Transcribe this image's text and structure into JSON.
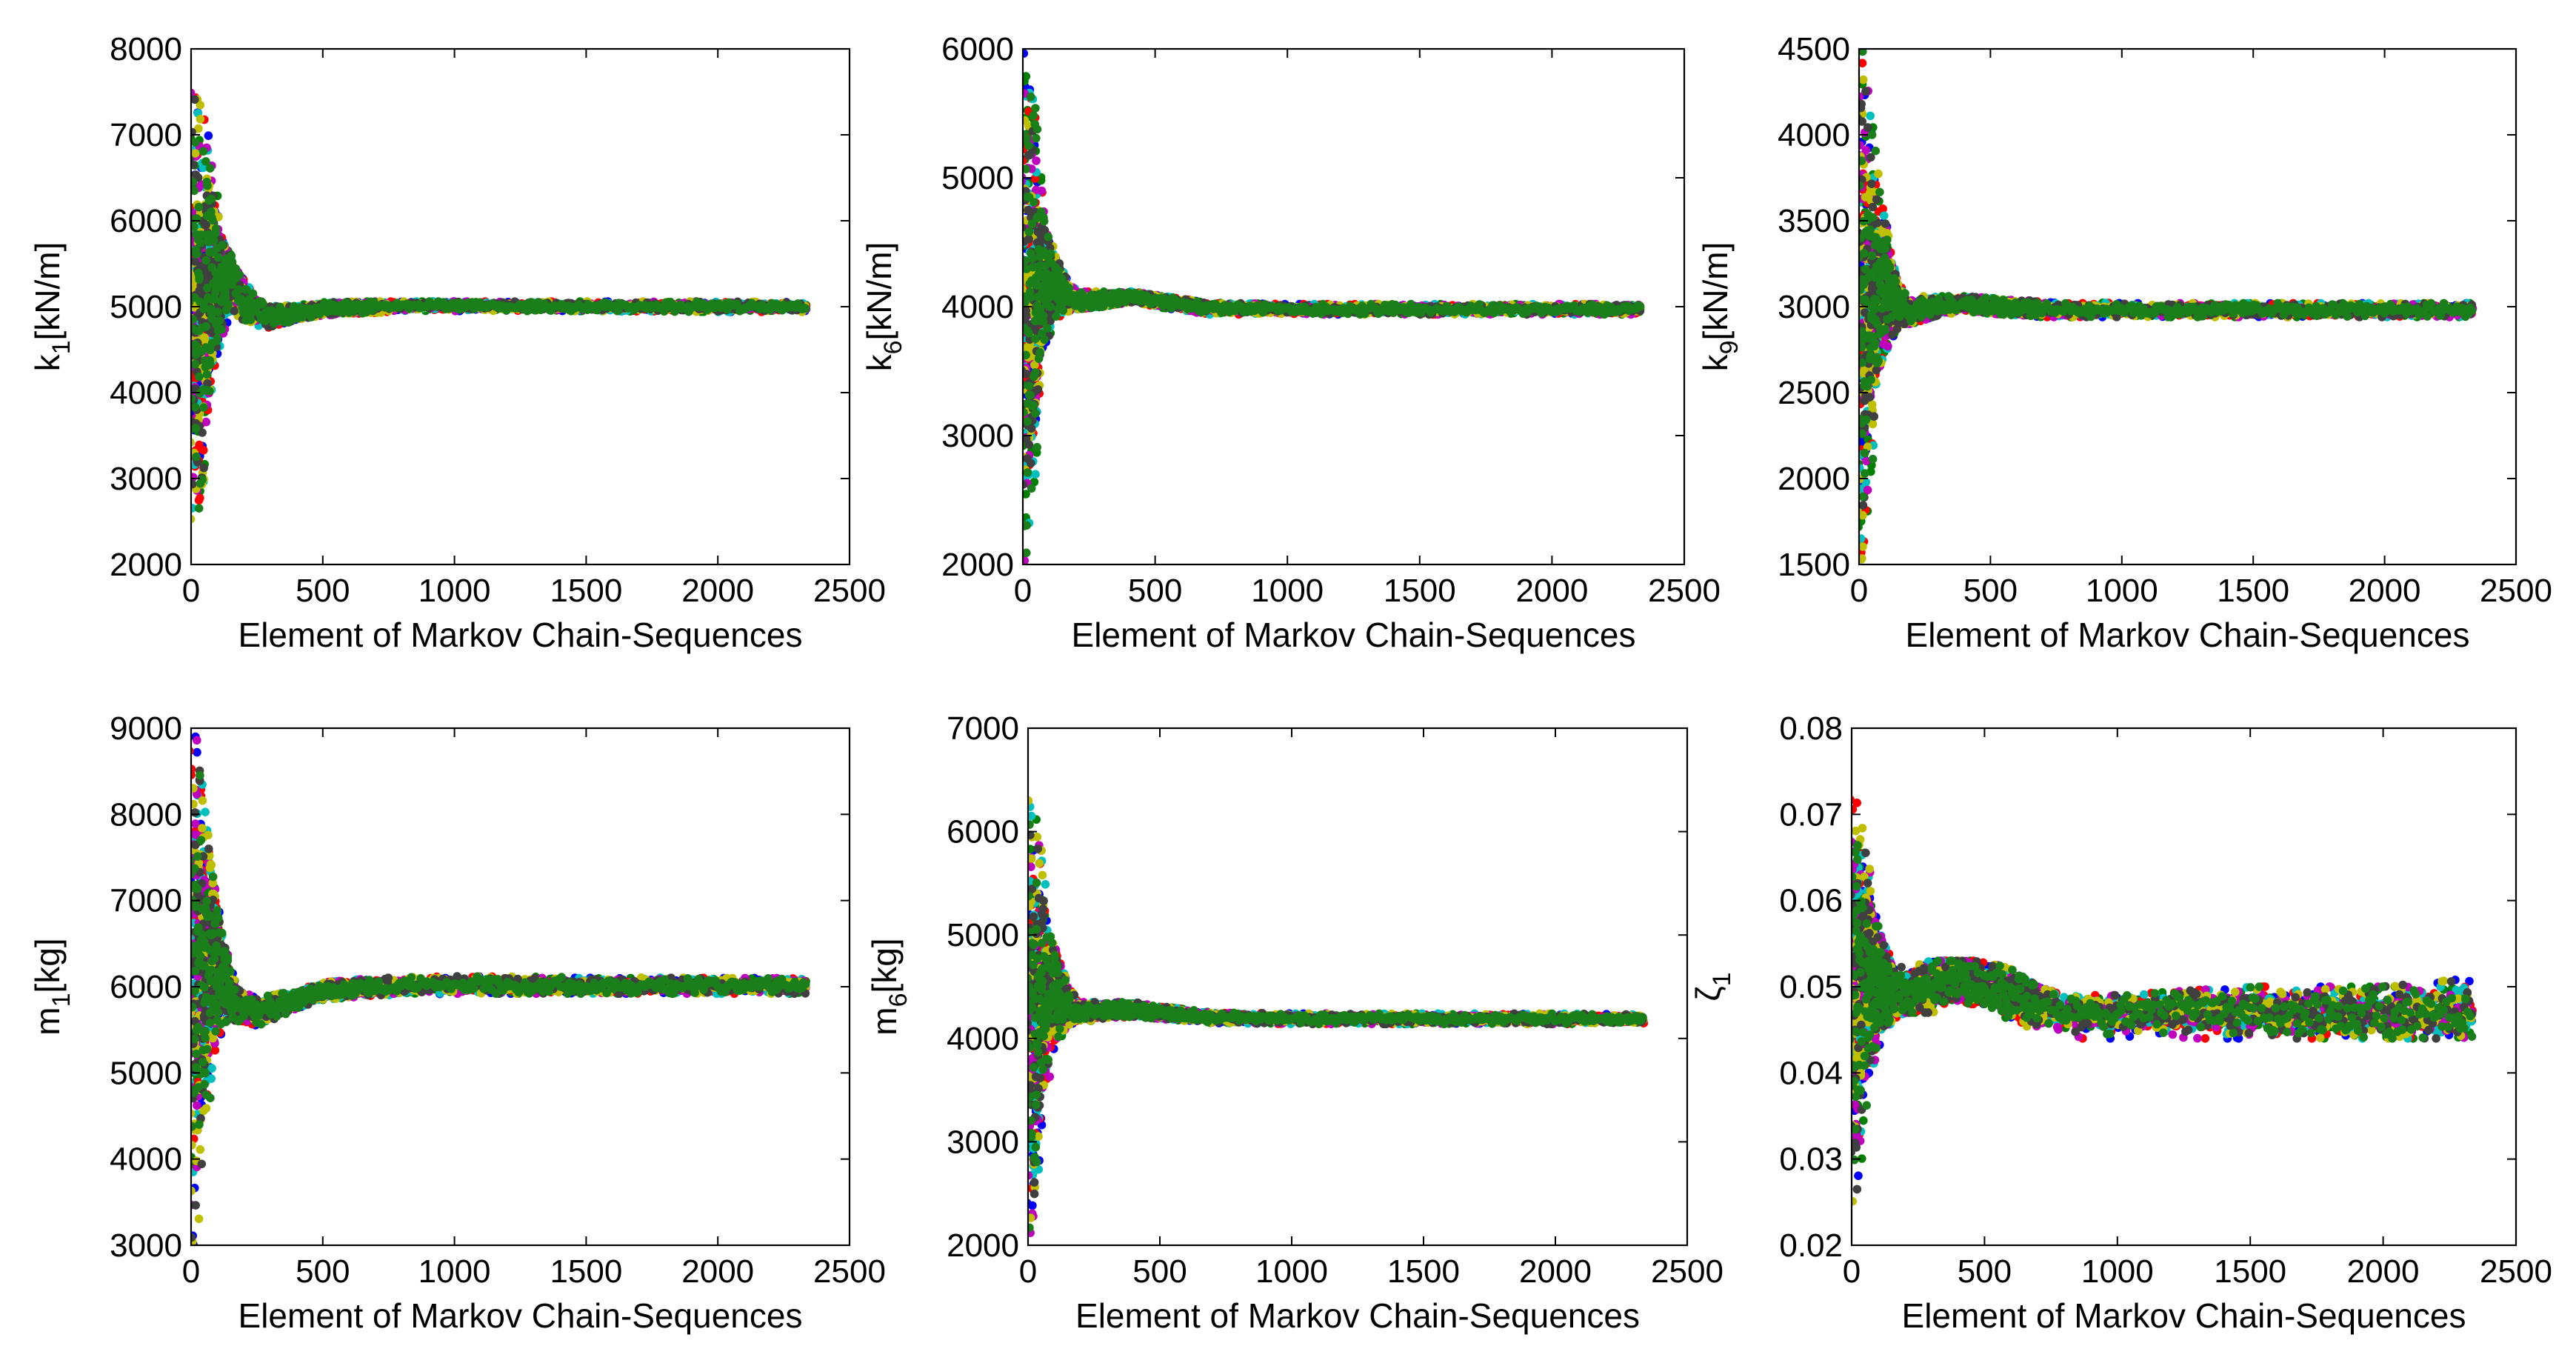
{
  "figure": {
    "marker_colors": [
      "#0000ff",
      "#008000",
      "#ff0000",
      "#00bfbf",
      "#bf00bf",
      "#bfbf00",
      "#404040",
      "#1a7f1a"
    ]
  },
  "chart_data": [
    {
      "type": "scatter",
      "panel": "top-left",
      "ylabel": "k",
      "ylabel_sub": "1",
      "ylabel_unit": "[kN/m]",
      "xlabel": "Element of Markov Chain-Sequences",
      "xlim": [
        0,
        2500
      ],
      "ylim": [
        2000,
        8000
      ],
      "xticks": [
        0,
        500,
        1000,
        1500,
        2000,
        2500
      ],
      "yticks": [
        2000,
        3000,
        4000,
        5000,
        6000,
        7000,
        8000
      ],
      "xtick_labels": [
        "0",
        "500",
        "1000",
        "1500",
        "2000",
        "2500"
      ],
      "ytick_labels": [
        "2000",
        "3000",
        "4000",
        "5000",
        "6000",
        "7000",
        "8000"
      ],
      "n_elements": 2340,
      "series_count": 8,
      "trace": {
        "x": [
          0,
          20,
          50,
          80,
          120,
          150,
          200,
          250,
          300,
          400,
          500,
          700,
          1000,
          1500,
          2000,
          2340
        ],
        "mean": [
          5000,
          5000,
          5050,
          5200,
          5350,
          5300,
          5100,
          4950,
          4880,
          4920,
          4970,
          5000,
          5010,
          5000,
          5000,
          5000
        ],
        "upper": [
          7500,
          7400,
          7200,
          6500,
          5800,
          5550,
          5300,
          5100,
          5000,
          5030,
          5050,
          5060,
          5060,
          5060,
          5060,
          5050
        ],
        "lower": [
          2500,
          2600,
          3000,
          4000,
          4700,
          4800,
          4850,
          4780,
          4750,
          4850,
          4900,
          4930,
          4950,
          4950,
          4940,
          4940
        ]
      }
    },
    {
      "type": "scatter",
      "panel": "top-middle",
      "ylabel": "k",
      "ylabel_sub": "6",
      "ylabel_unit": "[kN/m]",
      "xlabel": "Element of Markov Chain-Sequences",
      "xlim": [
        0,
        2500
      ],
      "ylim": [
        2000,
        6000
      ],
      "xticks": [
        0,
        500,
        1000,
        1500,
        2000,
        2500
      ],
      "yticks": [
        2000,
        3000,
        4000,
        5000,
        6000
      ],
      "xtick_labels": [
        "0",
        "500",
        "1000",
        "1500",
        "2000",
        "2500"
      ],
      "ytick_labels": [
        "2000",
        "3000",
        "4000",
        "5000",
        "6000"
      ],
      "n_elements": 2340,
      "series_count": 8,
      "trace": {
        "x": [
          0,
          20,
          50,
          80,
          120,
          150,
          200,
          300,
          400,
          500,
          700,
          1000,
          1500,
          2000,
          2340
        ],
        "mean": [
          4000,
          4000,
          4100,
          4200,
          4150,
          4100,
          4050,
          4050,
          4080,
          4050,
          3990,
          3980,
          3980,
          3980,
          3980
        ],
        "upper": [
          6000,
          5900,
          5400,
          4700,
          4400,
          4250,
          4150,
          4120,
          4120,
          4090,
          4030,
          4020,
          4020,
          4020,
          4020
        ],
        "lower": [
          2000,
          2100,
          3000,
          3700,
          3900,
          3950,
          3980,
          4000,
          4030,
          4000,
          3940,
          3940,
          3940,
          3940,
          3940
        ]
      }
    },
    {
      "type": "scatter",
      "panel": "top-right",
      "ylabel": "k",
      "ylabel_sub": "9",
      "ylabel_unit": "[kN/m]",
      "xlabel": "Element of Markov Chain-Sequences",
      "xlim": [
        0,
        2500
      ],
      "ylim": [
        1500,
        4500
      ],
      "xticks": [
        0,
        500,
        1000,
        1500,
        2000,
        2500
      ],
      "yticks": [
        1500,
        2000,
        2500,
        3000,
        3500,
        4000,
        4500
      ],
      "xtick_labels": [
        "0",
        "500",
        "1000",
        "1500",
        "2000",
        "2500"
      ],
      "ytick_labels": [
        "1500",
        "2000",
        "2500",
        "3000",
        "3500",
        "4000",
        "4500"
      ],
      "n_elements": 2340,
      "series_count": 8,
      "trace": {
        "x": [
          0,
          20,
          50,
          80,
          120,
          150,
          200,
          300,
          400,
          500,
          700,
          1000,
          1500,
          2000,
          2340
        ],
        "mean": [
          3000,
          3000,
          3050,
          3150,
          3100,
          3000,
          2960,
          3000,
          3020,
          3000,
          2980,
          2980,
          2980,
          2980,
          2980
        ],
        "upper": [
          4500,
          4450,
          4000,
          3600,
          3300,
          3150,
          3060,
          3060,
          3060,
          3050,
          3030,
          3020,
          3020,
          3020,
          3020
        ],
        "lower": [
          1500,
          1600,
          2100,
          2500,
          2800,
          2900,
          2900,
          2950,
          2970,
          2960,
          2940,
          2940,
          2940,
          2940,
          2940
        ]
      }
    },
    {
      "type": "scatter",
      "panel": "bottom-left",
      "ylabel": "m",
      "ylabel_sub": "1",
      "ylabel_unit": "[kg]",
      "xlabel": "Element of Markov Chain-Sequences",
      "xlim": [
        0,
        2500
      ],
      "ylim": [
        3000,
        9000
      ],
      "xticks": [
        0,
        500,
        1000,
        1500,
        2000,
        2500
      ],
      "yticks": [
        3000,
        4000,
        5000,
        6000,
        7000,
        8000,
        9000
      ],
      "xtick_labels": [
        "0",
        "500",
        "1000",
        "1500",
        "2000",
        "2500"
      ],
      "ytick_labels": [
        "3000",
        "4000",
        "5000",
        "6000",
        "7000",
        "8000",
        "9000"
      ],
      "n_elements": 2340,
      "series_count": 8,
      "trace": {
        "x": [
          0,
          20,
          50,
          80,
          120,
          150,
          200,
          250,
          300,
          400,
          500,
          700,
          1000,
          1500,
          2000,
          2340
        ],
        "mean": [
          6000,
          6000,
          6200,
          6300,
          6100,
          5900,
          5750,
          5700,
          5750,
          5850,
          5950,
          6000,
          6020,
          6010,
          6010,
          6010
        ],
        "upper": [
          9000,
          8800,
          8000,
          7200,
          6500,
          6200,
          5950,
          5850,
          5900,
          5950,
          6050,
          6100,
          6120,
          6110,
          6100,
          6100
        ],
        "lower": [
          3000,
          3200,
          4000,
          5000,
          5500,
          5600,
          5600,
          5550,
          5600,
          5750,
          5850,
          5900,
          5920,
          5920,
          5920,
          5920
        ]
      }
    },
    {
      "type": "scatter",
      "panel": "bottom-middle",
      "ylabel": "m",
      "ylabel_sub": "6",
      "ylabel_unit": "[kg]",
      "xlabel": "Element of Markov Chain-Sequences",
      "xlim": [
        0,
        2500
      ],
      "ylim": [
        2000,
        7000
      ],
      "xticks": [
        0,
        500,
        1000,
        1500,
        2000,
        2500
      ],
      "yticks": [
        2000,
        3000,
        4000,
        5000,
        6000,
        7000
      ],
      "xtick_labels": [
        "0",
        "500",
        "1000",
        "1500",
        "2000",
        "2500"
      ],
      "ytick_labels": [
        "2000",
        "3000",
        "4000",
        "5000",
        "6000",
        "7000"
      ],
      "n_elements": 2340,
      "series_count": 8,
      "trace": {
        "x": [
          0,
          20,
          50,
          80,
          120,
          150,
          200,
          300,
          400,
          500,
          700,
          1000,
          1500,
          2000,
          2340
        ],
        "mean": [
          4200,
          4200,
          4400,
          4500,
          4400,
          4300,
          4250,
          4270,
          4280,
          4250,
          4200,
          4190,
          4190,
          4190,
          4190
        ],
        "upper": [
          6300,
          6200,
          5700,
          5000,
          4700,
          4500,
          4350,
          4350,
          4350,
          4310,
          4250,
          4240,
          4240,
          4240,
          4230
        ],
        "lower": [
          2100,
          2200,
          3000,
          3700,
          4000,
          4100,
          4150,
          4200,
          4210,
          4190,
          4150,
          4140,
          4140,
          4140,
          4140
        ]
      }
    },
    {
      "type": "scatter",
      "panel": "bottom-right",
      "ylabel": "ζ",
      "ylabel_sub": "1",
      "ylabel_unit": "",
      "xlabel": "Element of Markov Chain-Sequences",
      "xlim": [
        0,
        2500
      ],
      "ylim": [
        0.02,
        0.08
      ],
      "xticks": [
        0,
        500,
        1000,
        1500,
        2000,
        2500
      ],
      "yticks": [
        0.02,
        0.03,
        0.04,
        0.05,
        0.06,
        0.07,
        0.08
      ],
      "xtick_labels": [
        "0",
        "500",
        "1000",
        "1500",
        "2000",
        "2500"
      ],
      "ytick_labels": [
        "0.02",
        "0.03",
        "0.04",
        "0.05",
        "0.06",
        "0.07",
        "0.08"
      ],
      "n_elements": 2340,
      "series_count": 8,
      "trace": {
        "x": [
          0,
          20,
          50,
          80,
          120,
          150,
          200,
          300,
          400,
          500,
          600,
          700,
          800,
          1000,
          1500,
          2000,
          2340
        ],
        "mean": [
          0.05,
          0.05,
          0.052,
          0.051,
          0.05,
          0.049,
          0.049,
          0.05,
          0.051,
          0.05,
          0.049,
          0.048,
          0.047,
          0.047,
          0.047,
          0.047,
          0.047
        ],
        "upper": [
          0.075,
          0.074,
          0.066,
          0.059,
          0.055,
          0.053,
          0.052,
          0.053,
          0.053,
          0.053,
          0.052,
          0.05,
          0.049,
          0.049,
          0.05,
          0.05,
          0.051
        ],
        "lower": [
          0.025,
          0.027,
          0.035,
          0.041,
          0.045,
          0.046,
          0.047,
          0.047,
          0.048,
          0.048,
          0.046,
          0.045,
          0.044,
          0.044,
          0.044,
          0.044,
          0.044
        ]
      }
    }
  ]
}
